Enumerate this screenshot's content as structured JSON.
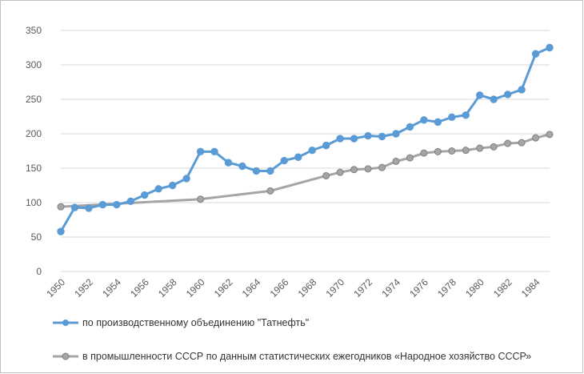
{
  "chart_data": {
    "type": "line",
    "title": "",
    "xlabel": "",
    "ylabel": "",
    "xlim": [
      1950,
      1985
    ],
    "ylim": [
      0,
      350
    ],
    "yticks": [
      0,
      50,
      100,
      150,
      200,
      250,
      300,
      350
    ],
    "xticks": [
      1950,
      1952,
      1954,
      1956,
      1958,
      1960,
      1962,
      1964,
      1966,
      1968,
      1970,
      1972,
      1974,
      1976,
      1978,
      1980,
      1982,
      1984
    ],
    "grid": true,
    "legend_position": "bottom",
    "series": [
      {
        "name": "по производственному объединению \"Татнефть\"",
        "color": "#5b9bd5",
        "x": [
          1950,
          1951,
          1952,
          1953,
          1954,
          1955,
          1956,
          1957,
          1958,
          1959,
          1960,
          1961,
          1962,
          1963,
          1964,
          1965,
          1966,
          1967,
          1968,
          1969,
          1970,
          1971,
          1972,
          1973,
          1974,
          1975,
          1976,
          1977,
          1978,
          1979,
          1980,
          1981,
          1982,
          1983,
          1984,
          1985
        ],
        "y": [
          58,
          93,
          92,
          97,
          97,
          102,
          111,
          120,
          125,
          135,
          174,
          174,
          158,
          153,
          146,
          146,
          161,
          166,
          176,
          183,
          193,
          193,
          197,
          196,
          200,
          210,
          220,
          217,
          224,
          227,
          256,
          250,
          257,
          264,
          316,
          325
        ]
      },
      {
        "name": "в промышленности СССР по данным статистических ежегодников «Народное хозяйство СССР»",
        "color": "#a5a5a5",
        "x": [
          1950,
          1960,
          1965,
          1969,
          1970,
          1971,
          1972,
          1973,
          1974,
          1975,
          1976,
          1977,
          1978,
          1979,
          1980,
          1981,
          1982,
          1983,
          1984,
          1985
        ],
        "y": [
          94,
          105,
          117,
          139,
          144,
          148,
          149,
          151,
          160,
          165,
          172,
          174,
          175,
          176,
          179,
          181,
          186,
          187,
          194,
          199
        ]
      }
    ]
  }
}
